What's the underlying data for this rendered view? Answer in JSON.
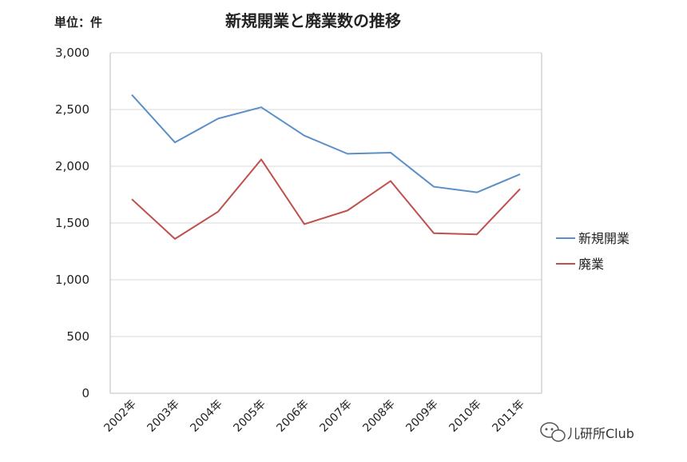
{
  "chart_data": {
    "type": "line",
    "title": "新規開業と廃業数の推移",
    "unit_label": "単位：件",
    "categories": [
      "2002年",
      "2003年",
      "2004年",
      "2005年",
      "2006年",
      "2007年",
      "2008年",
      "2009年",
      "2010年",
      "2011年"
    ],
    "yticks": [
      "0",
      "500",
      "1,000",
      "1,500",
      "2,000",
      "2,500",
      "3,000"
    ],
    "ylim": [
      0,
      3000
    ],
    "grid": true,
    "legend_position": "right",
    "series": [
      {
        "name": "新規開業",
        "color": "#5b8fc7",
        "values": [
          2630,
          2210,
          2420,
          2520,
          2270,
          2110,
          2120,
          1820,
          1770,
          1930
        ]
      },
      {
        "name": "廃業",
        "color": "#c0504d",
        "values": [
          1710,
          1360,
          1600,
          2060,
          1490,
          1610,
          1870,
          1410,
          1400,
          1800
        ]
      }
    ]
  },
  "watermark": {
    "text": "儿研所Club",
    "icon": "wechat-icon"
  }
}
